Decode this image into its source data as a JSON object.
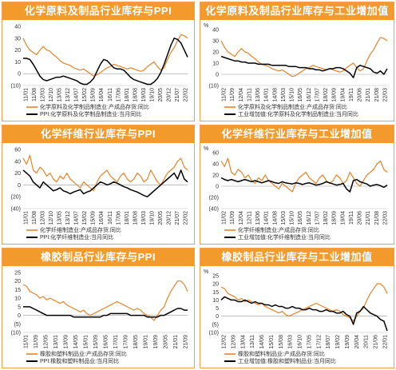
{
  "colors": {
    "title_bg": "#f39a2c",
    "inventory": "#e8832a",
    "index": "#000000",
    "border": "#f0a050"
  },
  "panels": [
    {
      "title": "化学原料及制品行业库存与PPI"
    },
    {
      "title": "化学原料及制品行业库存与工业增加值"
    },
    {
      "title": "化学纤维行业库存与PPI"
    },
    {
      "title": "化学纤维行业库存与工业增加值"
    },
    {
      "title": "橡胶制品行业库存与PPI"
    },
    {
      "title": "橡胶制品行业库存与工业增加值"
    }
  ],
  "chart_data": [
    {
      "type": "line",
      "title": "化学原料及制品行业库存与PPI",
      "unit": "",
      "ylim": [
        -10,
        40
      ],
      "yticks": [
        "40",
        "30",
        "20",
        "10",
        "0",
        "(10)"
      ],
      "yticks_values": [
        40,
        30,
        20,
        10,
        0,
        -10
      ],
      "xticks": [
        "11/01",
        "11/08",
        "12/03",
        "12/10",
        "13/05",
        "13/12",
        "14/07",
        "15/02",
        "15/09",
        "16/04",
        "16/11",
        "17/06",
        "18/01",
        "18/08",
        "19/03",
        "19/10",
        "20/05",
        "20/12",
        "21/07",
        "22/02"
      ],
      "legend": [
        "化学原料及化学制品制造业:产成品存货:同比",
        "PPI:化学原料及化学制品制造业:当月同比"
      ],
      "series": [
        {
          "name": "化学原料及化学制品制造业:产成品存货:同比",
          "values": [
            30,
            24,
            20,
            18,
            16,
            20,
            23,
            20,
            19,
            16,
            14,
            11,
            9,
            8,
            7,
            5,
            4,
            3,
            4,
            2,
            0,
            -2,
            -1,
            1,
            3,
            5,
            6,
            8,
            7,
            6,
            5,
            4,
            5,
            4,
            3,
            2,
            3,
            6,
            8,
            10,
            6,
            3,
            5,
            12,
            18,
            22,
            28,
            33,
            32,
            30
          ]
        },
        {
          "name": "PPI:化学原料及化学制品制造业:当月同比",
          "values": [
            13,
            13,
            12,
            8,
            3,
            -2,
            -5,
            -6,
            -5,
            -4,
            -3,
            -3,
            -2,
            -3,
            -4,
            -5,
            -6,
            -8,
            -9,
            -9,
            -7,
            -4,
            2,
            8,
            12,
            11,
            8,
            5,
            4,
            4,
            3,
            0,
            -3,
            -5,
            -6,
            -7,
            -8,
            -9,
            -9,
            -7,
            -4,
            1,
            8,
            16,
            24,
            30,
            29,
            26,
            20,
            14
          ]
        }
      ]
    },
    {
      "type": "line",
      "title": "化学原料及制品行业库存与工业增加值",
      "unit": "%",
      "ylim": [
        -10,
        40
      ],
      "yticks": [
        "40",
        "30",
        "20",
        "10",
        "0",
        "(10)"
      ],
      "yticks_values": [
        40,
        30,
        20,
        10,
        0,
        -10
      ],
      "xticks": [
        "11/02",
        "11/09",
        "12/04",
        "12/11",
        "13/06",
        "14/01",
        "14/08",
        "15/03",
        "15/10",
        "16/05",
        "16/12",
        "17/07",
        "18/02",
        "18/09",
        "19/04",
        "19/11",
        "20/06",
        "21/01",
        "21/08",
        "22/03"
      ],
      "legend": [
        "化学原料及化学制品制造业:产成品存货:同比",
        "工业增加值:化学原料及化学制品制造业:当月同比"
      ],
      "series": [
        {
          "name": "化学原料及化学制品制造业:产成品存货:同比",
          "values": [
            30,
            24,
            20,
            18,
            16,
            20,
            23,
            20,
            19,
            16,
            14,
            11,
            9,
            8,
            7,
            5,
            4,
            3,
            4,
            2,
            0,
            -2,
            -1,
            1,
            3,
            5,
            6,
            8,
            7,
            6,
            5,
            4,
            5,
            4,
            3,
            2,
            3,
            6,
            8,
            10,
            6,
            3,
            5,
            12,
            18,
            22,
            28,
            33,
            32,
            30
          ]
        },
        {
          "name": "工业增加值:化学原料及化学制品制造业:当月同比",
          "values": [
            16,
            15,
            14,
            13,
            12,
            12,
            11,
            11,
            10,
            10,
            10,
            9,
            9,
            9,
            9,
            8,
            8,
            8,
            8,
            8,
            7,
            7,
            7,
            6,
            6,
            6,
            5,
            5,
            4,
            4,
            3,
            4,
            5,
            5,
            6,
            6,
            5,
            3,
            1,
            -3,
            6,
            8,
            7,
            6,
            5,
            2,
            1,
            3,
            0,
            5
          ]
        }
      ]
    },
    {
      "type": "line",
      "title": "化学纤维行业库存与PPI",
      "unit": "",
      "ylim": [
        -40,
        60
      ],
      "yticks": [
        "60",
        "40",
        "20",
        "0",
        "(20)",
        "(40)"
      ],
      "yticks_values": [
        60,
        40,
        20,
        0,
        -20,
        -40
      ],
      "xticks": [
        "11/01",
        "11/08",
        "12/03",
        "12/10",
        "13/05",
        "13/12",
        "14/07",
        "15/02",
        "15/09",
        "16/04",
        "16/11",
        "17/06",
        "18/01",
        "18/08",
        "19/03",
        "19/10",
        "20/05",
        "20/12",
        "21/07",
        "22/02"
      ],
      "legend": [
        "化学纤维制造业:产成品存货:同比",
        "PPI:化学纤维制造业:当月同比"
      ],
      "series": [
        {
          "name": "化学纤维制造业:产成品存货:同比",
          "values": [
            45,
            35,
            50,
            25,
            20,
            30,
            25,
            15,
            20,
            10,
            5,
            15,
            10,
            20,
            10,
            5,
            0,
            -5,
            5,
            0,
            -5,
            -10,
            5,
            15,
            20,
            25,
            15,
            10,
            5,
            15,
            20,
            10,
            5,
            10,
            20,
            15,
            5,
            10,
            25,
            15,
            5,
            0,
            10,
            20,
            25,
            30,
            40,
            45,
            30,
            25
          ]
        },
        {
          "name": "PPI:化学纤维制造业:当月同比",
          "values": [
            25,
            20,
            15,
            5,
            0,
            -5,
            5,
            0,
            -5,
            -10,
            -8,
            -5,
            -10,
            -12,
            -15,
            -12,
            -10,
            -8,
            -15,
            -12,
            -10,
            -5,
            0,
            5,
            3,
            0,
            2,
            5,
            3,
            0,
            -3,
            -5,
            -8,
            -10,
            -12,
            -15,
            -18,
            -20,
            -15,
            -10,
            -5,
            0,
            5,
            10,
            15,
            20,
            10,
            25,
            10,
            5
          ]
        }
      ]
    },
    {
      "type": "line",
      "title": "化学纤维行业库存与工业增加值",
      "unit": "%",
      "ylim": [
        -40,
        60
      ],
      "yticks": [
        "60",
        "40",
        "20",
        "0",
        "(20)",
        "(40)"
      ],
      "yticks_values": [
        60,
        40,
        20,
        0,
        -20,
        -40
      ],
      "xticks": [
        "11/02",
        "11/09",
        "12/04",
        "12/11",
        "13/06",
        "14/01",
        "14/08",
        "15/03",
        "15/10",
        "16/05",
        "16/12",
        "17/07",
        "18/02",
        "18/09",
        "19/04",
        "19/11",
        "20/06",
        "21/01",
        "21/08",
        "22/03"
      ],
      "legend": [
        "化学纤维制造业:产成品存货:同比",
        "工业增加值:化学纤维制造业:当月同比"
      ],
      "series": [
        {
          "name": "化学纤维制造业:产成品存货:同比",
          "values": [
            45,
            35,
            50,
            25,
            20,
            30,
            25,
            15,
            20,
            10,
            5,
            15,
            10,
            20,
            10,
            5,
            0,
            -5,
            5,
            0,
            -5,
            -10,
            5,
            15,
            20,
            25,
            15,
            10,
            5,
            15,
            20,
            10,
            5,
            10,
            20,
            15,
            5,
            10,
            25,
            15,
            5,
            0,
            10,
            20,
            25,
            30,
            40,
            45,
            30,
            25
          ]
        },
        {
          "name": "工业增加值:化学纤维制造业:当月同比",
          "values": [
            15,
            12,
            10,
            12,
            10,
            8,
            10,
            12,
            10,
            8,
            10,
            8,
            6,
            8,
            10,
            8,
            6,
            5,
            8,
            6,
            5,
            4,
            6,
            5,
            3,
            5,
            6,
            4,
            2,
            3,
            5,
            8,
            6,
            4,
            2,
            3,
            5,
            -5,
            -10,
            10,
            12,
            8,
            6,
            4,
            0,
            2,
            3,
            1,
            -2,
            2
          ]
        }
      ]
    },
    {
      "type": "line",
      "title": "橡胶制品行业库存与PPI",
      "unit": "",
      "ylim": [
        -10,
        25
      ],
      "yticks": [
        "25",
        "20",
        "15",
        "10",
        "5",
        "0",
        "(5)",
        "(10)"
      ],
      "yticks_values": [
        25,
        20,
        15,
        10,
        5,
        0,
        -5,
        -10
      ],
      "xticks": [
        "11/01",
        "11/09",
        "12/05",
        "13/01",
        "13/09",
        "14/05",
        "15/01",
        "15/09",
        "16/05",
        "17/01",
        "17/09",
        "18/05",
        "19/01",
        "19/09",
        "20/05",
        "21/01",
        "21/09"
      ],
      "legend": [
        "橡胶和塑料制品业:产成品存货:同比",
        "PPI:橡胶和塑料制品业:当月同比"
      ],
      "series": [
        {
          "name": "橡胶和塑料制品业:产成品存货:同比",
          "values": [
            18,
            17,
            14,
            13,
            12,
            10,
            11,
            9,
            10,
            9,
            8,
            7,
            8,
            6,
            5,
            4,
            3,
            2,
            3,
            1,
            0,
            1,
            2,
            3,
            4,
            5,
            6,
            7,
            8,
            7,
            6,
            5,
            4,
            3,
            4,
            3,
            1,
            0,
            -1,
            -3,
            0,
            3,
            5,
            10,
            14,
            17,
            20,
            20,
            18,
            14
          ]
        },
        {
          "name": "PPI:橡胶和塑料制品业:当月同比",
          "values": [
            5,
            5,
            5,
            4,
            3,
            2,
            1,
            0,
            0,
            0,
            0,
            0,
            0,
            0,
            0,
            -1,
            -1,
            -1,
            -1,
            -1,
            -1,
            -1,
            -1,
            -1,
            0,
            0,
            1,
            1,
            1,
            1,
            1,
            1,
            0,
            0,
            0,
            0,
            0,
            -1,
            -1,
            -1,
            -1,
            0,
            0,
            1,
            2,
            3,
            4,
            4,
            3,
            3
          ]
        }
      ]
    },
    {
      "type": "line",
      "title": "橡胶制品行业库存与工业增加值",
      "unit": "%",
      "ylim": [
        -10,
        25
      ],
      "yticks": [
        "25",
        "20",
        "15",
        "10",
        "5",
        "0",
        "(5)",
        "(10)"
      ],
      "yticks_values": [
        25,
        20,
        15,
        10,
        5,
        0,
        -5,
        -10
      ],
      "xticks": [
        "12/02",
        "12/09",
        "13/04",
        "13/11",
        "14/06",
        "15/01",
        "15/08",
        "16/03",
        "16/10",
        "17/05",
        "17/12",
        "18/07",
        "19/02",
        "19/09",
        "20/04",
        "20/11",
        "21/06",
        "22/01"
      ],
      "legend": [
        "橡胶和塑料制品业:产成品存货:同比",
        "工业增加值:橡胶和塑料制品业:当月同比"
      ],
      "series": [
        {
          "name": "橡胶和塑料制品业:产成品存货:同比",
          "values": [
            18,
            17,
            14,
            13,
            12,
            10,
            11,
            9,
            10,
            9,
            8,
            7,
            8,
            6,
            5,
            4,
            3,
            2,
            3,
            1,
            0,
            1,
            2,
            3,
            4,
            5,
            6,
            7,
            8,
            7,
            6,
            5,
            4,
            3,
            4,
            3,
            1,
            0,
            -1,
            -3,
            0,
            3,
            5,
            10,
            14,
            17,
            20,
            20,
            18,
            14
          ]
        },
        {
          "name": "工业增加值:橡胶和塑料制品业:当月同比",
          "values": [
            10,
            12,
            11,
            10,
            10,
            9,
            9,
            10,
            9,
            8,
            9,
            8,
            8,
            7,
            7,
            6,
            7,
            6,
            6,
            5,
            5,
            6,
            5,
            5,
            4,
            4,
            5,
            4,
            4,
            3,
            3,
            4,
            3,
            3,
            2,
            2,
            3,
            1,
            0,
            -5,
            2,
            3,
            6,
            4,
            2,
            1,
            0,
            -2,
            -3,
            -9
          ]
        }
      ]
    }
  ]
}
